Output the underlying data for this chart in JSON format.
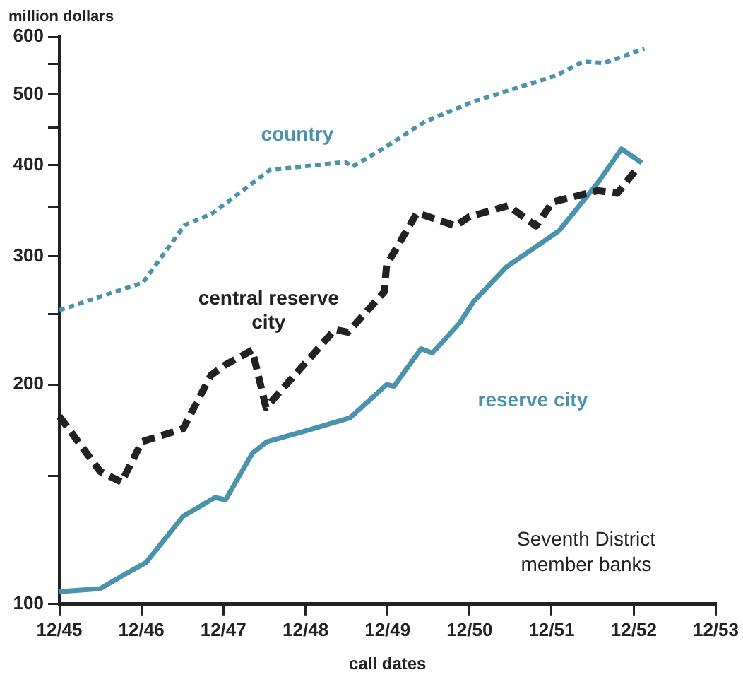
{
  "chart_data": {
    "type": "line",
    "xlabel": "call dates",
    "ylabel": "million dollars",
    "annotations": [
      "Seventh District member banks"
    ],
    "log": "y",
    "grid": false,
    "legend": false,
    "marker": "none",
    "xlim": [
      "1945-12-31",
      "1953-12-31"
    ],
    "xticks": [
      {
        "value": "1945-12-31",
        "label": "12/45"
      },
      {
        "value": "1946-12-31",
        "label": "12/46"
      },
      {
        "value": "1947-12-31",
        "label": "12/47"
      },
      {
        "value": "1948-12-31",
        "label": "12/48"
      },
      {
        "value": "1949-12-31",
        "label": "12/49"
      },
      {
        "value": "1950-12-31",
        "label": "12/50"
      },
      {
        "value": "1951-12-31",
        "label": "12/51"
      },
      {
        "value": "1952-12-31",
        "label": "12/52"
      },
      {
        "value": "1953-12-31",
        "label": "12/53"
      }
    ],
    "ylim": [
      100,
      600
    ],
    "yticks": [
      100,
      {
        "value": 150,
        "label": null
      },
      200,
      {
        "value": 250,
        "label": null
      },
      300,
      {
        "value": 350,
        "label": null
      },
      400,
      {
        "value": 450,
        "label": null
      },
      500,
      {
        "value": 550,
        "label": null
      },
      600
    ],
    "series": [
      {
        "name": "country",
        "color": "#4b93ad",
        "line_style": "dotted",
        "x": [
          "1945-12-31",
          "1947-01-07",
          "1947-07-12",
          "1947-11-09",
          "1948-07-26",
          "1949-06-27",
          "1949-07-26",
          "1949-12-09",
          "1950-06-16",
          "1951-01-18",
          "1952-01-22",
          "1952-05-22",
          "1952-08-18",
          "1952-11-06",
          "1953-02-16"
        ],
        "values": [
          253,
          276,
          331,
          343,
          394,
          404,
          398,
          421,
          459,
          489,
          531,
          555,
          552,
          563,
          578
        ]
      },
      {
        "name": "central reserve city",
        "color": "#222222",
        "line_style": "dashed",
        "x": [
          "1945-12-31",
          "1946-07-01",
          "1946-10-04",
          "1947-01-03",
          "1947-07-05",
          "1947-11-06",
          "1948-01-10",
          "1948-05-08",
          "1948-07-08",
          "1949-05-11",
          "1949-07-08",
          "1949-12-16",
          "1949-12-27",
          "1950-05-11",
          "1950-10-30",
          "1950-12-31",
          "1951-06-21",
          "1951-10-23",
          "1952-01-04",
          "1952-07-23",
          "1952-10-19",
          "1953-01-04"
        ],
        "values": [
          181,
          152,
          147,
          167,
          174,
          206,
          213,
          223,
          186,
          238,
          236,
          268,
          292,
          344,
          330,
          340,
          352,
          330,
          356,
          369,
          366,
          392
        ]
      },
      {
        "name": "reserve city",
        "color": "#4b93ad",
        "line_style": "solid",
        "x": [
          "1945-12-31",
          "1946-07-01",
          "1946-10-22",
          "1947-01-21",
          "1947-07-05",
          "1947-11-24",
          "1948-01-10",
          "1948-05-08",
          "1948-07-12",
          "1949-01-07",
          "1949-07-16",
          "1949-12-27",
          "1950-01-29",
          "1950-05-29",
          "1950-07-19",
          "1950-11-17",
          "1951-01-18",
          "1951-06-13",
          "1952-02-02",
          "1952-07-23",
          "1952-11-06",
          "1953-02-05"
        ],
        "values": [
          104,
          105,
          110,
          114,
          132,
          140,
          139,
          161,
          167,
          173,
          180,
          200,
          199,
          224,
          221,
          243,
          260,
          290,
          325,
          378,
          421,
          403
        ]
      }
    ]
  }
}
